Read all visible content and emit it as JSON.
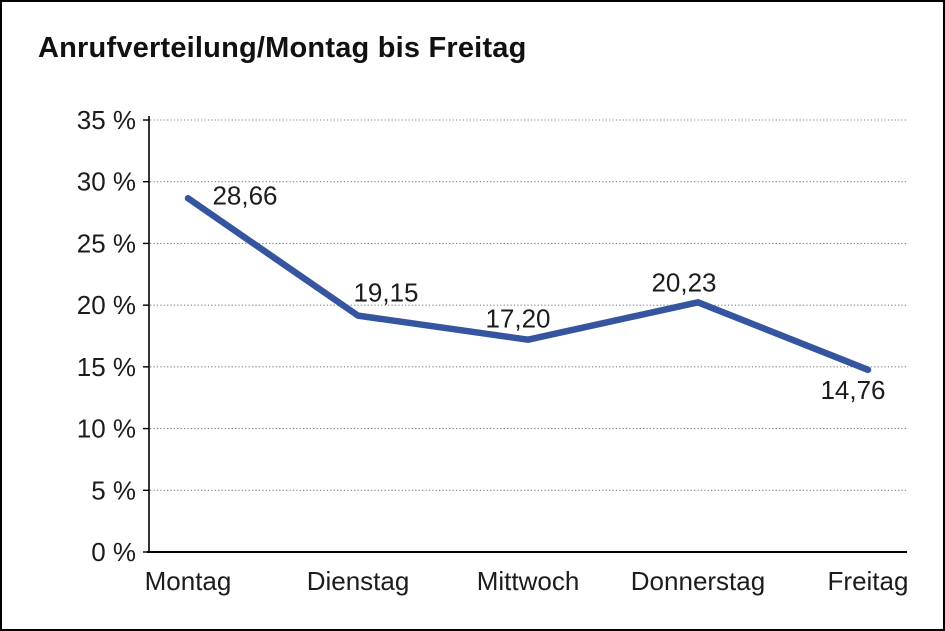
{
  "chart_data": {
    "type": "line",
    "title": "Anrufverteilung/Montag bis Freitag",
    "categories": [
      "Montag",
      "Dienstag",
      "Mittwoch",
      "Donnerstag",
      "Freitag"
    ],
    "series": [
      {
        "name": "Anrufverteilung",
        "values": [
          28.66,
          19.15,
          17.2,
          20.23,
          14.76
        ]
      }
    ],
    "point_labels": [
      "28,66",
      "19,15",
      "17,20",
      "20,23",
      "14,76"
    ],
    "xlabel": "",
    "ylabel": "%",
    "ylim": [
      0,
      35
    ],
    "ytick_step": 5,
    "ytick_labels": [
      "0 %",
      "5 %",
      "10 %",
      "15 %",
      "20 %",
      "25 %",
      "30 %",
      "35 %"
    ],
    "grid": "horizontal-dotted",
    "legend": "none",
    "colors": {
      "line": "#3555a1",
      "grid": "#858585",
      "axis": "#000000",
      "text": "#1c1c1c",
      "background": "#ffffff",
      "border": "#000000"
    }
  }
}
